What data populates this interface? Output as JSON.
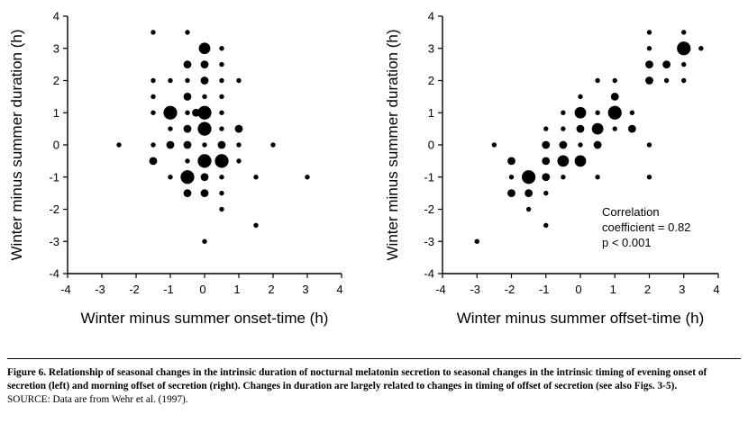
{
  "chart_data": [
    {
      "type": "scatter",
      "panel": "left",
      "title": "",
      "xlabel": "Winter minus summer onset-time (h)",
      "ylabel": "Winter minus summer duration (h)",
      "xlim": [
        -4,
        4
      ],
      "ylim": [
        -4,
        4
      ],
      "xticks": [
        "-4",
        "-3",
        "-2",
        "-1",
        "0",
        "1",
        "2",
        "3",
        "4"
      ],
      "yticks": [
        "-4",
        "-3",
        "-2",
        "-1",
        "0",
        "1",
        "2",
        "3",
        "4"
      ],
      "grid": false,
      "points": [
        {
          "x": -2.5,
          "y": 0,
          "n": 1
        },
        {
          "x": -1.5,
          "y": 3.5,
          "n": 1
        },
        {
          "x": -0.5,
          "y": 3.5,
          "n": 1
        },
        {
          "x": 0,
          "y": 3,
          "n": 3
        },
        {
          "x": 0.5,
          "y": 3,
          "n": 1
        },
        {
          "x": -0.5,
          "y": 2.5,
          "n": 2
        },
        {
          "x": 0,
          "y": 2.5,
          "n": 2
        },
        {
          "x": 0.5,
          "y": 2.5,
          "n": 1
        },
        {
          "x": -1.5,
          "y": 2,
          "n": 1
        },
        {
          "x": -1,
          "y": 2,
          "n": 1
        },
        {
          "x": -0.5,
          "y": 2,
          "n": 1
        },
        {
          "x": 0,
          "y": 2,
          "n": 2
        },
        {
          "x": 0.5,
          "y": 2,
          "n": 1
        },
        {
          "x": 1,
          "y": 2,
          "n": 1
        },
        {
          "x": -1.5,
          "y": 1.5,
          "n": 1
        },
        {
          "x": -0.5,
          "y": 1.5,
          "n": 2
        },
        {
          "x": 0,
          "y": 1.5,
          "n": 1
        },
        {
          "x": 0.5,
          "y": 1.5,
          "n": 1
        },
        {
          "x": -1.5,
          "y": 1,
          "n": 1
        },
        {
          "x": -1,
          "y": 1,
          "n": 4
        },
        {
          "x": -0.5,
          "y": 1,
          "n": 1
        },
        {
          "x": -0.25,
          "y": 1,
          "n": 2
        },
        {
          "x": 0,
          "y": 1,
          "n": 4
        },
        {
          "x": 0.5,
          "y": 1,
          "n": 1
        },
        {
          "x": -1,
          "y": 0.5,
          "n": 1
        },
        {
          "x": -0.5,
          "y": 0.5,
          "n": 2
        },
        {
          "x": 0,
          "y": 0.5,
          "n": 4
        },
        {
          "x": 0.5,
          "y": 0.5,
          "n": 1
        },
        {
          "x": 1,
          "y": 0.5,
          "n": 2
        },
        {
          "x": -1.5,
          "y": 0,
          "n": 1
        },
        {
          "x": -1,
          "y": 0,
          "n": 2
        },
        {
          "x": -0.5,
          "y": 0,
          "n": 2
        },
        {
          "x": 0,
          "y": 0,
          "n": 1
        },
        {
          "x": 0.5,
          "y": 0,
          "n": 2
        },
        {
          "x": 1,
          "y": 0,
          "n": 1
        },
        {
          "x": 2,
          "y": 0,
          "n": 1
        },
        {
          "x": -1.5,
          "y": -0.5,
          "n": 2
        },
        {
          "x": -0.5,
          "y": -0.5,
          "n": 1
        },
        {
          "x": 0,
          "y": -0.5,
          "n": 4
        },
        {
          "x": 0.5,
          "y": -0.5,
          "n": 4
        },
        {
          "x": 1,
          "y": -0.5,
          "n": 1
        },
        {
          "x": -1,
          "y": -1,
          "n": 1
        },
        {
          "x": -0.5,
          "y": -1,
          "n": 4
        },
        {
          "x": 0,
          "y": -1,
          "n": 2
        },
        {
          "x": 0.5,
          "y": -1,
          "n": 1
        },
        {
          "x": 1.5,
          "y": -1,
          "n": 1
        },
        {
          "x": 3,
          "y": -1,
          "n": 1
        },
        {
          "x": -0.5,
          "y": -1.5,
          "n": 2
        },
        {
          "x": 0,
          "y": -1.5,
          "n": 2
        },
        {
          "x": 0.5,
          "y": -1.5,
          "n": 1
        },
        {
          "x": 0.5,
          "y": -2,
          "n": 1
        },
        {
          "x": 1.5,
          "y": -2.5,
          "n": 1
        },
        {
          "x": 0,
          "y": -3,
          "n": 1
        }
      ]
    },
    {
      "type": "scatter",
      "panel": "right",
      "title": "",
      "xlabel": "Winter minus summer offset-time (h)",
      "ylabel": "Winter minus summer duration (h)",
      "xlim": [
        -4,
        4
      ],
      "ylim": [
        -4,
        4
      ],
      "xticks": [
        "-4",
        "-3",
        "-2",
        "-1",
        "0",
        "1",
        "2",
        "3",
        "4"
      ],
      "yticks": [
        "-4",
        "-3",
        "-2",
        "-1",
        "0",
        "1",
        "2",
        "3",
        "4"
      ],
      "grid": false,
      "annotation": [
        "Correlation",
        "coefficient = 0.82",
        "p  <  0.001"
      ],
      "points": [
        {
          "x": -3,
          "y": -3,
          "n": 1
        },
        {
          "x": -1.5,
          "y": -2,
          "n": 1
        },
        {
          "x": -1,
          "y": -2.5,
          "n": 1
        },
        {
          "x": -2,
          "y": -1.5,
          "n": 2
        },
        {
          "x": -1.5,
          "y": -1.5,
          "n": 2
        },
        {
          "x": -1,
          "y": -1.5,
          "n": 1
        },
        {
          "x": -2,
          "y": -1,
          "n": 1
        },
        {
          "x": -1.5,
          "y": -1,
          "n": 4
        },
        {
          "x": -1,
          "y": -1,
          "n": 2
        },
        {
          "x": -2,
          "y": -0.5,
          "n": 2
        },
        {
          "x": -1,
          "y": -0.5,
          "n": 2
        },
        {
          "x": -0.5,
          "y": -0.5,
          "n": 3
        },
        {
          "x": 0,
          "y": -0.5,
          "n": 3
        },
        {
          "x": -0.5,
          "y": -1,
          "n": 1
        },
        {
          "x": 0.5,
          "y": -1,
          "n": 1
        },
        {
          "x": 2,
          "y": -1,
          "n": 1
        },
        {
          "x": -2.5,
          "y": 0,
          "n": 1
        },
        {
          "x": -1,
          "y": 0,
          "n": 2
        },
        {
          "x": -0.5,
          "y": 0,
          "n": 2
        },
        {
          "x": 0,
          "y": 0,
          "n": 1
        },
        {
          "x": 0.5,
          "y": 0,
          "n": 2
        },
        {
          "x": 2,
          "y": 0,
          "n": 1
        },
        {
          "x": -1,
          "y": 0.5,
          "n": 1
        },
        {
          "x": -0.5,
          "y": 0.5,
          "n": 1
        },
        {
          "x": 0,
          "y": 0.5,
          "n": 2
        },
        {
          "x": 0.5,
          "y": 0.5,
          "n": 3
        },
        {
          "x": 1,
          "y": 0.5,
          "n": 1
        },
        {
          "x": 1.5,
          "y": 0.5,
          "n": 2
        },
        {
          "x": -0.5,
          "y": 1,
          "n": 1
        },
        {
          "x": 0,
          "y": 1,
          "n": 3
        },
        {
          "x": 0.5,
          "y": 1,
          "n": 1
        },
        {
          "x": 1,
          "y": 1,
          "n": 4
        },
        {
          "x": 1.5,
          "y": 1,
          "n": 1
        },
        {
          "x": 0,
          "y": 1.5,
          "n": 1
        },
        {
          "x": 1,
          "y": 1.5,
          "n": 2
        },
        {
          "x": 0.5,
          "y": 2,
          "n": 1
        },
        {
          "x": 1,
          "y": 2,
          "n": 1
        },
        {
          "x": 2,
          "y": 2,
          "n": 2
        },
        {
          "x": 2.5,
          "y": 2,
          "n": 1
        },
        {
          "x": 3,
          "y": 2,
          "n": 1
        },
        {
          "x": 2,
          "y": 2.5,
          "n": 2
        },
        {
          "x": 2.5,
          "y": 2.5,
          "n": 2
        },
        {
          "x": 3,
          "y": 2.5,
          "n": 1
        },
        {
          "x": 2,
          "y": 3,
          "n": 1
        },
        {
          "x": 3,
          "y": 3,
          "n": 4
        },
        {
          "x": 3.5,
          "y": 3,
          "n": 1
        },
        {
          "x": 2,
          "y": 3.5,
          "n": 1
        },
        {
          "x": 3,
          "y": 3.5,
          "n": 1
        }
      ]
    }
  ],
  "caption": {
    "main": "Figure 6.   Relationship of seasonal changes in the intrinsic duration of nocturnal melatonin secretion to seasonal changes in the intrinsic timing of evening onset of secretion (left) and morning offset of secretion (right). Changes in duration are largely related to changes in timing of offset of secretion (see also Figs. 3-5).",
    "source": "SOURCE: Data are from Wehr et al. (1997)."
  }
}
